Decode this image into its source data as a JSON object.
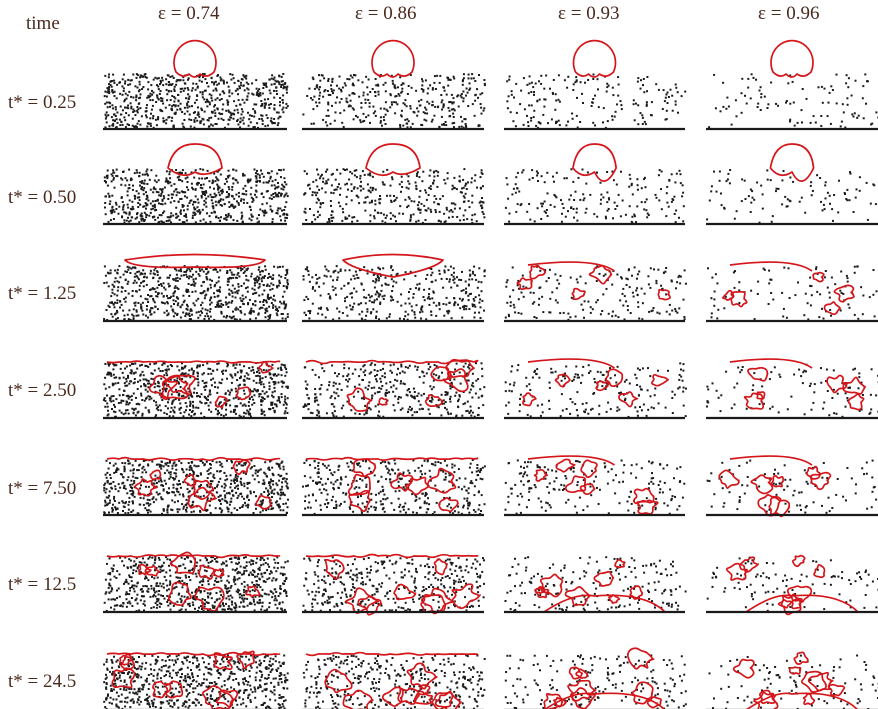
{
  "figure": {
    "time_header": "time",
    "epsilon_symbol": "ε",
    "columns": [
      {
        "label": "ε = 0.74",
        "porosity": 0.74
      },
      {
        "label": "ε = 0.86",
        "porosity": 0.86
      },
      {
        "label": "ε = 0.93",
        "porosity": 0.93
      },
      {
        "label": "ε = 0.96",
        "porosity": 0.96
      }
    ],
    "rows": [
      {
        "label": "t* = 0.25",
        "t": 0.25
      },
      {
        "label": "t* = 0.50",
        "t": 0.5
      },
      {
        "label": "t* = 1.25",
        "t": 1.25
      },
      {
        "label": "t* = 2.50",
        "t": 2.5
      },
      {
        "label": "t* = 7.50",
        "t": 7.5
      },
      {
        "label": "t* = 12.5",
        "t": 12.5
      },
      {
        "label": "t* = 24.5",
        "t": 24.5
      }
    ],
    "colors": {
      "interface": "#d4161b",
      "particles": "#1a1a1a",
      "text": "#4a2a1e"
    }
  }
}
